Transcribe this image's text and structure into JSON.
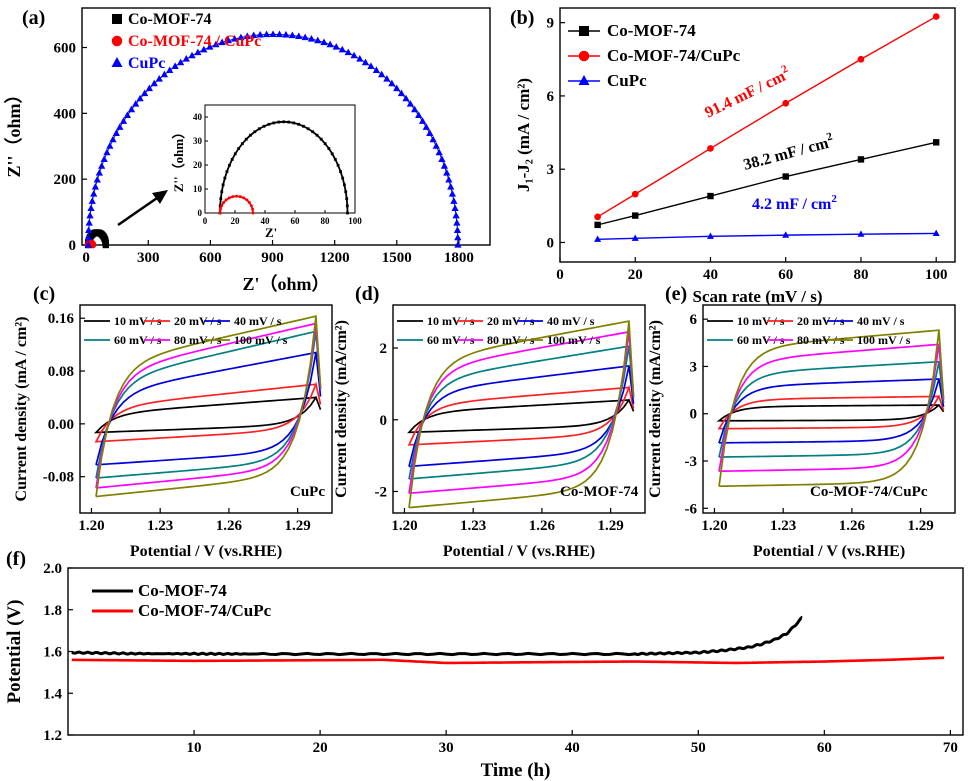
{
  "chart_data": [
    {
      "panel": "(a)",
      "type": "scatter",
      "xlabel": "Z'（ohm）",
      "ylabel": "Z''（ohm）",
      "xlim": [
        -20,
        1950
      ],
      "ylim": [
        0,
        720
      ],
      "xticks": [
        0,
        300,
        600,
        900,
        1200,
        1500,
        1800
      ],
      "yticks": [
        0,
        200,
        400,
        600
      ],
      "legend": "top-left",
      "series": [
        {
          "name": "Co-MOF-74",
          "color": "#000000",
          "marker": "square",
          "arc": {
            "x0": 10,
            "x1": 95,
            "h": 38
          }
        },
        {
          "name": "Co-MOF-74 / CuPc",
          "color": "#ff0000",
          "marker": "circle",
          "arc": {
            "x0": 10,
            "x1": 32,
            "h": 7
          }
        },
        {
          "name": "CuPc",
          "color": "#0000ff",
          "marker": "triangle",
          "arc": {
            "x0": 10,
            "x1": 1795,
            "h": 640
          }
        }
      ],
      "inset": {
        "xlabel": "Z'",
        "ylabel": "Z''（ohm）",
        "xlim": [
          0,
          100
        ],
        "ylim": [
          0,
          45
        ],
        "xticks": [
          0,
          20,
          40,
          60,
          80,
          100
        ],
        "yticks": [
          0,
          10,
          20,
          30,
          40
        ]
      }
    },
    {
      "panel": "(b)",
      "type": "line",
      "xlabel": "Scan rate (mV / s)",
      "ylabel": "J1-J2 (mA / cm2)",
      "xlim": [
        0,
        105
      ],
      "ylim": [
        -0.8,
        9.6
      ],
      "xticks": [
        0,
        20,
        40,
        60,
        80,
        100
      ],
      "yticks": [
        0,
        3,
        6,
        9
      ],
      "x": [
        10,
        20,
        40,
        60,
        80,
        100
      ],
      "legend": "top-left",
      "series": [
        {
          "name": "Co-MOF-74",
          "color": "#000000",
          "marker": "square",
          "values": [
            0.72,
            1.1,
            1.9,
            2.7,
            3.4,
            4.1
          ]
        },
        {
          "name": "Co-MOF-74/CuPc",
          "color": "#ff0000",
          "marker": "circle",
          "values": [
            1.05,
            1.98,
            3.85,
            5.7,
            7.5,
            9.25
          ]
        },
        {
          "name": "CuPc",
          "color": "#0000ff",
          "marker": "triangle",
          "values": [
            0.13,
            0.17,
            0.25,
            0.3,
            0.34,
            0.37
          ]
        }
      ],
      "annotations": [
        {
          "text": "91.4 mF / cm",
          "sup": "2",
          "color": "#ff0000"
        },
        {
          "text": "38.2 mF / cm",
          "sup": "2",
          "color": "#000000"
        },
        {
          "text": "4.2 mF / cm",
          "sup": "2",
          "color": "#0000ff"
        }
      ]
    },
    {
      "panel": "(c)",
      "type": "line",
      "xlabel": "Potential / V (vs.RHE)",
      "ylabel": "Current density (mA / cm2)",
      "xlim": [
        1.195,
        1.305
      ],
      "ylim": [
        -0.135,
        0.18
      ],
      "xticks": [
        1.2,
        1.23,
        1.26,
        1.29
      ],
      "xtick_labels": [
        "1.20",
        "1.23",
        "1.26",
        "1.29"
      ],
      "yticks": [
        -0.08,
        0,
        0.08,
        0.16
      ],
      "ytick_labels": [
        "-0.08",
        "0.00",
        "0.08",
        "0.16"
      ],
      "sample": "CuPc",
      "series": [
        {
          "name": "10 mV / s",
          "color": "#000000",
          "upper": [
            0.015,
            0.04
          ],
          "lower": [
            -0.013,
            -0.001
          ]
        },
        {
          "name": "20 mV / s",
          "color": "#ff2020",
          "upper": [
            0.025,
            0.06
          ],
          "lower": [
            -0.027,
            -0.008
          ]
        },
        {
          "name": "40 mV / s",
          "color": "#0000dd",
          "upper": [
            0.045,
            0.108
          ],
          "lower": [
            -0.062,
            -0.04
          ]
        },
        {
          "name": "60 mV / s",
          "color": "#008080",
          "upper": [
            0.063,
            0.14
          ],
          "lower": [
            -0.082,
            -0.055
          ]
        },
        {
          "name": "80 mV / s",
          "color": "#ff00ff",
          "upper": [
            0.075,
            0.152
          ],
          "lower": [
            -0.097,
            -0.065
          ]
        },
        {
          "name": "100 mV / s",
          "color": "#808000",
          "upper": [
            0.087,
            0.163
          ],
          "lower": [
            -0.11,
            -0.076
          ]
        }
      ]
    },
    {
      "panel": "(d)",
      "type": "line",
      "xlabel": "Potential / V (vs.RHE)",
      "ylabel": "Current density (mA/cm2)",
      "xlim": [
        1.195,
        1.305
      ],
      "ylim": [
        -2.6,
        3.2
      ],
      "xticks": [
        1.2,
        1.23,
        1.26,
        1.29
      ],
      "xtick_labels": [
        "1.20",
        "1.23",
        "1.26",
        "1.29"
      ],
      "yticks": [
        -2,
        0,
        2
      ],
      "ytick_labels": [
        "-2",
        "0",
        "2"
      ],
      "sample": "Co-MOF-74",
      "series": [
        {
          "name": "10 mV / s",
          "color": "#000000",
          "upper": [
            0.2,
            0.55
          ],
          "lower": [
            -0.35,
            -0.15
          ]
        },
        {
          "name": "20 mV / s",
          "color": "#ff2020",
          "upper": [
            0.4,
            0.9
          ],
          "lower": [
            -0.7,
            -0.4
          ]
        },
        {
          "name": "40 mV / s",
          "color": "#0000dd",
          "upper": [
            0.75,
            1.5
          ],
          "lower": [
            -1.3,
            -0.85
          ]
        },
        {
          "name": "60 mV / s",
          "color": "#008080",
          "upper": [
            1.05,
            2.05
          ],
          "lower": [
            -1.65,
            -1.15
          ]
        },
        {
          "name": "80 mV / s",
          "color": "#ff00ff",
          "upper": [
            1.35,
            2.45
          ],
          "lower": [
            -2.05,
            -1.55
          ]
        },
        {
          "name": "100 mV / s",
          "color": "#808000",
          "upper": [
            1.6,
            2.75
          ],
          "lower": [
            -2.45,
            -1.9
          ]
        }
      ]
    },
    {
      "panel": "(e)",
      "type": "line",
      "xlabel": "Potential / V (vs.RHE)",
      "ylabel": "Current density (mA/cm2)",
      "xlim": [
        1.195,
        1.305
      ],
      "ylim": [
        -6.3,
        6.9
      ],
      "xticks": [
        1.2,
        1.23,
        1.26,
        1.29
      ],
      "xtick_labels": [
        "1.20",
        "1.23",
        "1.26",
        "1.29"
      ],
      "yticks": [
        -6,
        -3,
        0,
        3,
        6
      ],
      "ytick_labels": [
        "-6",
        "-3",
        "0",
        "3",
        "6"
      ],
      "sample": "Co-MOF-74/CuPc",
      "series": [
        {
          "name": "10 mV / s",
          "color": "#000000",
          "upper": [
            0.45,
            0.55
          ],
          "lower": [
            -0.45,
            -0.4
          ]
        },
        {
          "name": "20 mV / s",
          "color": "#ff2020",
          "upper": [
            0.9,
            1.1
          ],
          "lower": [
            -0.95,
            -0.85
          ]
        },
        {
          "name": "40 mV / s",
          "color": "#0000dd",
          "upper": [
            1.7,
            2.2
          ],
          "lower": [
            -1.85,
            -1.7
          ]
        },
        {
          "name": "60 mV / s",
          "color": "#008080",
          "upper": [
            2.5,
            3.3
          ],
          "lower": [
            -2.75,
            -2.55
          ]
        },
        {
          "name": "80 mV / s",
          "color": "#ff00ff",
          "upper": [
            3.3,
            4.4
          ],
          "lower": [
            -3.65,
            -3.4
          ]
        },
        {
          "name": "100 mV / s",
          "color": "#808000",
          "upper": [
            4.1,
            5.3
          ],
          "lower": [
            -4.6,
            -4.35
          ]
        }
      ]
    },
    {
      "panel": "(f)",
      "type": "line",
      "xlabel": "Time (h)",
      "ylabel": "Potential (V)",
      "xlim": [
        0,
        71
      ],
      "ylim": [
        1.2,
        2.0
      ],
      "xticks": [
        10,
        20,
        30,
        40,
        50,
        60,
        70
      ],
      "yticks": [
        1.2,
        1.4,
        1.6,
        1.8,
        2.0
      ],
      "ytick_labels": [
        "1.2",
        "1.4",
        "1.6",
        "1.8",
        "2.0"
      ],
      "legend": "top-left",
      "series": [
        {
          "name": "Co-MOF-74",
          "color": "#000000",
          "x": [
            0.3,
            5,
            15,
            30,
            45,
            50,
            52,
            54,
            55,
            56,
            57,
            57.6,
            58.2
          ],
          "values": [
            1.595,
            1.59,
            1.588,
            1.588,
            1.588,
            1.595,
            1.605,
            1.62,
            1.635,
            1.655,
            1.685,
            1.72,
            1.76
          ]
        },
        {
          "name": "Co-MOF-74/CuPc",
          "color": "#ff0000",
          "x": [
            0.3,
            10,
            25,
            30,
            40,
            45,
            53,
            60,
            65,
            69.5
          ],
          "values": [
            1.56,
            1.555,
            1.56,
            1.545,
            1.55,
            1.552,
            1.545,
            1.552,
            1.56,
            1.57
          ]
        }
      ]
    }
  ]
}
